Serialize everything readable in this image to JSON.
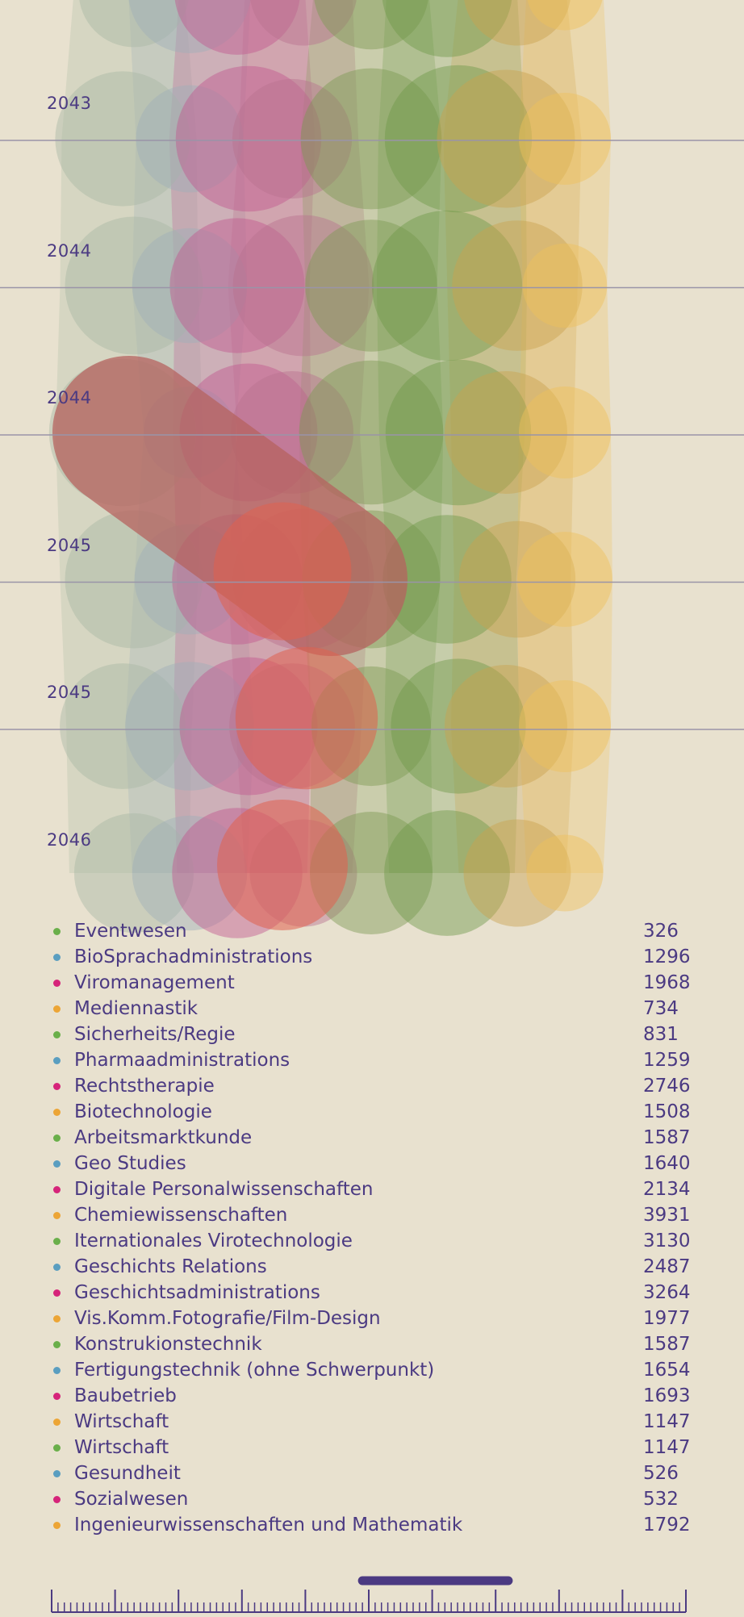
{
  "colors": {
    "background": "#e8e1cf",
    "text": "#4b3a82",
    "grid": "#9a94a8",
    "scrubber": "#4b3a82",
    "palette": [
      "#6aaf4a",
      "#5a9ec0",
      "#d6247a",
      "#eca536"
    ]
  },
  "chart_data": {
    "type": "timeline-bubbles",
    "year_labels": [
      "2043",
      "2044",
      "2044",
      "2045",
      "2045",
      "2046"
    ],
    "columns": [
      {
        "color": "#a9b9a3",
        "values": [
          0.72,
          0.88,
          0.9,
          0.96,
          0.9,
          0.82,
          0.78
        ]
      },
      {
        "color": "#9fb0b8",
        "values": [
          0.8,
          0.7,
          0.75,
          0.6,
          0.72,
          0.84,
          0.75
        ]
      },
      {
        "color": "#c0578f",
        "values": [
          0.82,
          0.95,
          0.88,
          0.9,
          0.85,
          0.9,
          0.85
        ]
      },
      {
        "color": "#b8718d",
        "values": [
          0.7,
          0.78,
          0.92,
          0.8,
          0.92,
          0.82,
          0.7
        ]
      },
      {
        "color": "#7d9a52",
        "values": [
          0.75,
          0.92,
          0.86,
          0.94,
          0.9,
          0.78,
          0.8
        ]
      },
      {
        "color": "#6e9a4a",
        "values": [
          0.85,
          0.96,
          0.98,
          0.95,
          0.84,
          0.88,
          0.82
        ]
      },
      {
        "color": "#c9a24e",
        "values": [
          0.7,
          0.9,
          0.85,
          0.8,
          0.76,
          0.8,
          0.7
        ]
      },
      {
        "color": "#f0c15a",
        "values": [
          0.5,
          0.6,
          0.55,
          0.6,
          0.62,
          0.6,
          0.5
        ]
      }
    ],
    "highlight": {
      "color": "#b5635f",
      "from": [
        0,
        3
      ],
      "to": [
        3,
        4
      ]
    },
    "red_cluster": {
      "color": "#e0604e",
      "values": [
        0.95,
        0.98,
        0.9
      ]
    }
  },
  "legend": [
    {
      "name": "Eventwesen",
      "value": "326",
      "color": "#6aaf4a"
    },
    {
      "name": "BioSprachadministrations",
      "value": "1296",
      "color": "#5a9ec0"
    },
    {
      "name": "Viromanagement",
      "value": "1968",
      "color": "#d6247a"
    },
    {
      "name": "Mediennastik",
      "value": "734",
      "color": "#eca536"
    },
    {
      "name": "Sicherheits/Regie",
      "value": "831",
      "color": "#6aaf4a"
    },
    {
      "name": "Pharmaadministrations",
      "value": "1259",
      "color": "#5a9ec0"
    },
    {
      "name": "Rechtstherapie",
      "value": "2746",
      "color": "#d6247a"
    },
    {
      "name": "Biotechnologie",
      "value": "1508",
      "color": "#eca536"
    },
    {
      "name": "Arbeitsmarktkunde",
      "value": "1587",
      "color": "#6aaf4a"
    },
    {
      "name": "Geo Studies",
      "value": "1640",
      "color": "#5a9ec0"
    },
    {
      "name": "Digitale Personalwissenschaften",
      "value": "2134",
      "color": "#d6247a"
    },
    {
      "name": "Chemiewissenschaften",
      "value": "3931",
      "color": "#eca536"
    },
    {
      "name": "Iternationales Virotechnologie",
      "value": "3130",
      "color": "#6aaf4a"
    },
    {
      "name": "Geschichts Relations",
      "value": "2487",
      "color": "#5a9ec0"
    },
    {
      "name": "Geschichtsadministrations",
      "value": "3264",
      "color": "#d6247a"
    },
    {
      "name": "Vis.Komm.Fotografie/Film-Design",
      "value": "1977",
      "color": "#eca536"
    },
    {
      "name": "Konstrukionstechnik",
      "value": "1587",
      "color": "#6aaf4a"
    },
    {
      "name": "Fertigungstechnik (ohne Schwerpunkt)",
      "value": "1654",
      "color": "#5a9ec0"
    },
    {
      "name": "Baubetrieb",
      "value": "1693",
      "color": "#d6247a"
    },
    {
      "name": "Wirtschaft",
      "value": "1147",
      "color": "#eca536"
    },
    {
      "name": "Wirtschaft",
      "value": "1147",
      "color": "#6aaf4a"
    },
    {
      "name": "Gesundheit",
      "value": "526",
      "color": "#5a9ec0"
    },
    {
      "name": "Sozialwesen",
      "value": "532",
      "color": "#d6247a"
    },
    {
      "name": "Ingenieurwissenschaften und Mathematik",
      "value": "1792",
      "color": "#eca536"
    }
  ],
  "scrubber": {
    "handle_start": 0.49,
    "handle_end": 0.72
  }
}
